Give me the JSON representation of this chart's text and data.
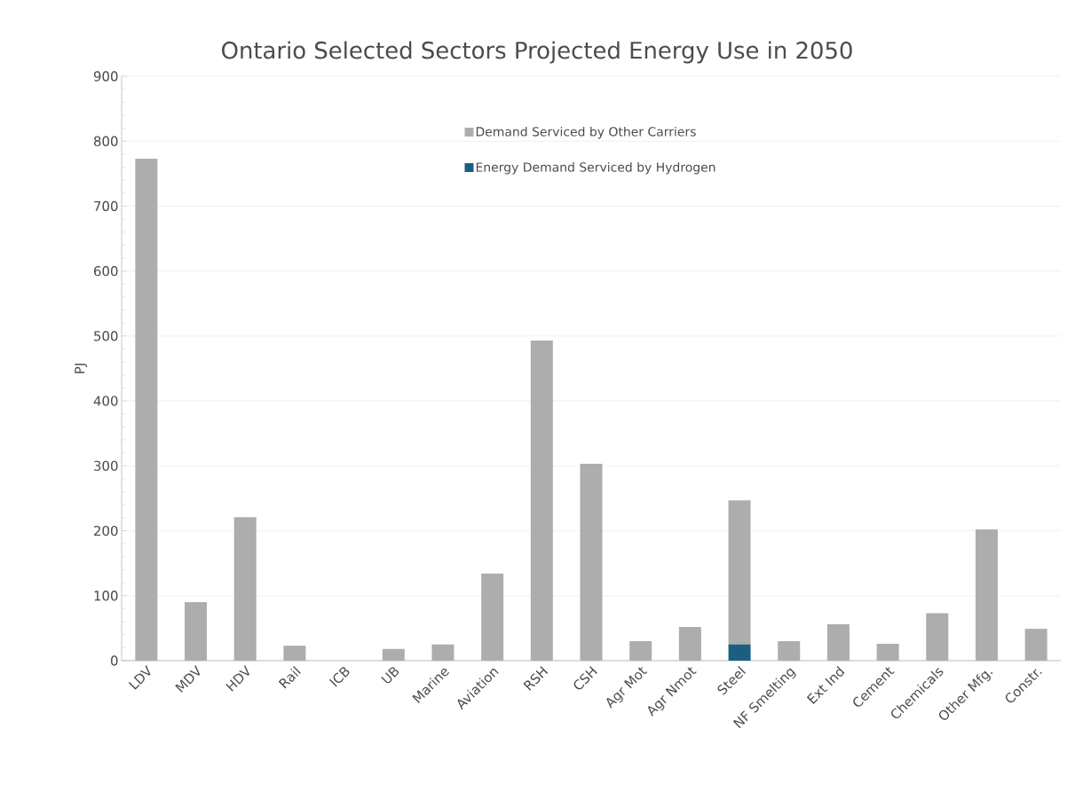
{
  "chart_data": {
    "type": "bar",
    "title": "Ontario Selected Sectors Projected Energy Use in 2050",
    "ylabel": "PJ",
    "categories": [
      "LDV",
      "MDV",
      "HDV",
      "Rail",
      "ICB",
      "UB",
      "Marine",
      "Aviation",
      "RSH",
      "CSH",
      "Agr Mot",
      "Agr Nmot",
      "Steel",
      "NF Smelting",
      "Ext Ind",
      "Cement",
      "Chemicals",
      "Other Mfg.",
      "Constr."
    ],
    "stacked": true,
    "series": [
      {
        "name": "Energy Demand Serviced by Hydrogen",
        "color": "#1a5f82",
        "values": [
          0,
          0,
          0,
          0,
          0,
          0,
          0,
          0,
          0,
          0,
          0,
          0,
          25,
          0,
          0,
          0,
          0,
          0,
          0
        ]
      },
      {
        "name": "Demand Serviced by Other Carriers",
        "color": "#adadad",
        "values": [
          773,
          90,
          221,
          23,
          0,
          18,
          25,
          134,
          493,
          303,
          30,
          52,
          222,
          30,
          56,
          26,
          73,
          202,
          49
        ]
      }
    ],
    "ylim": [
      0,
      900
    ],
    "yticks": [
      0,
      100,
      200,
      300,
      400,
      500,
      600,
      700,
      800,
      900
    ],
    "grid": "y",
    "legend": "top"
  }
}
